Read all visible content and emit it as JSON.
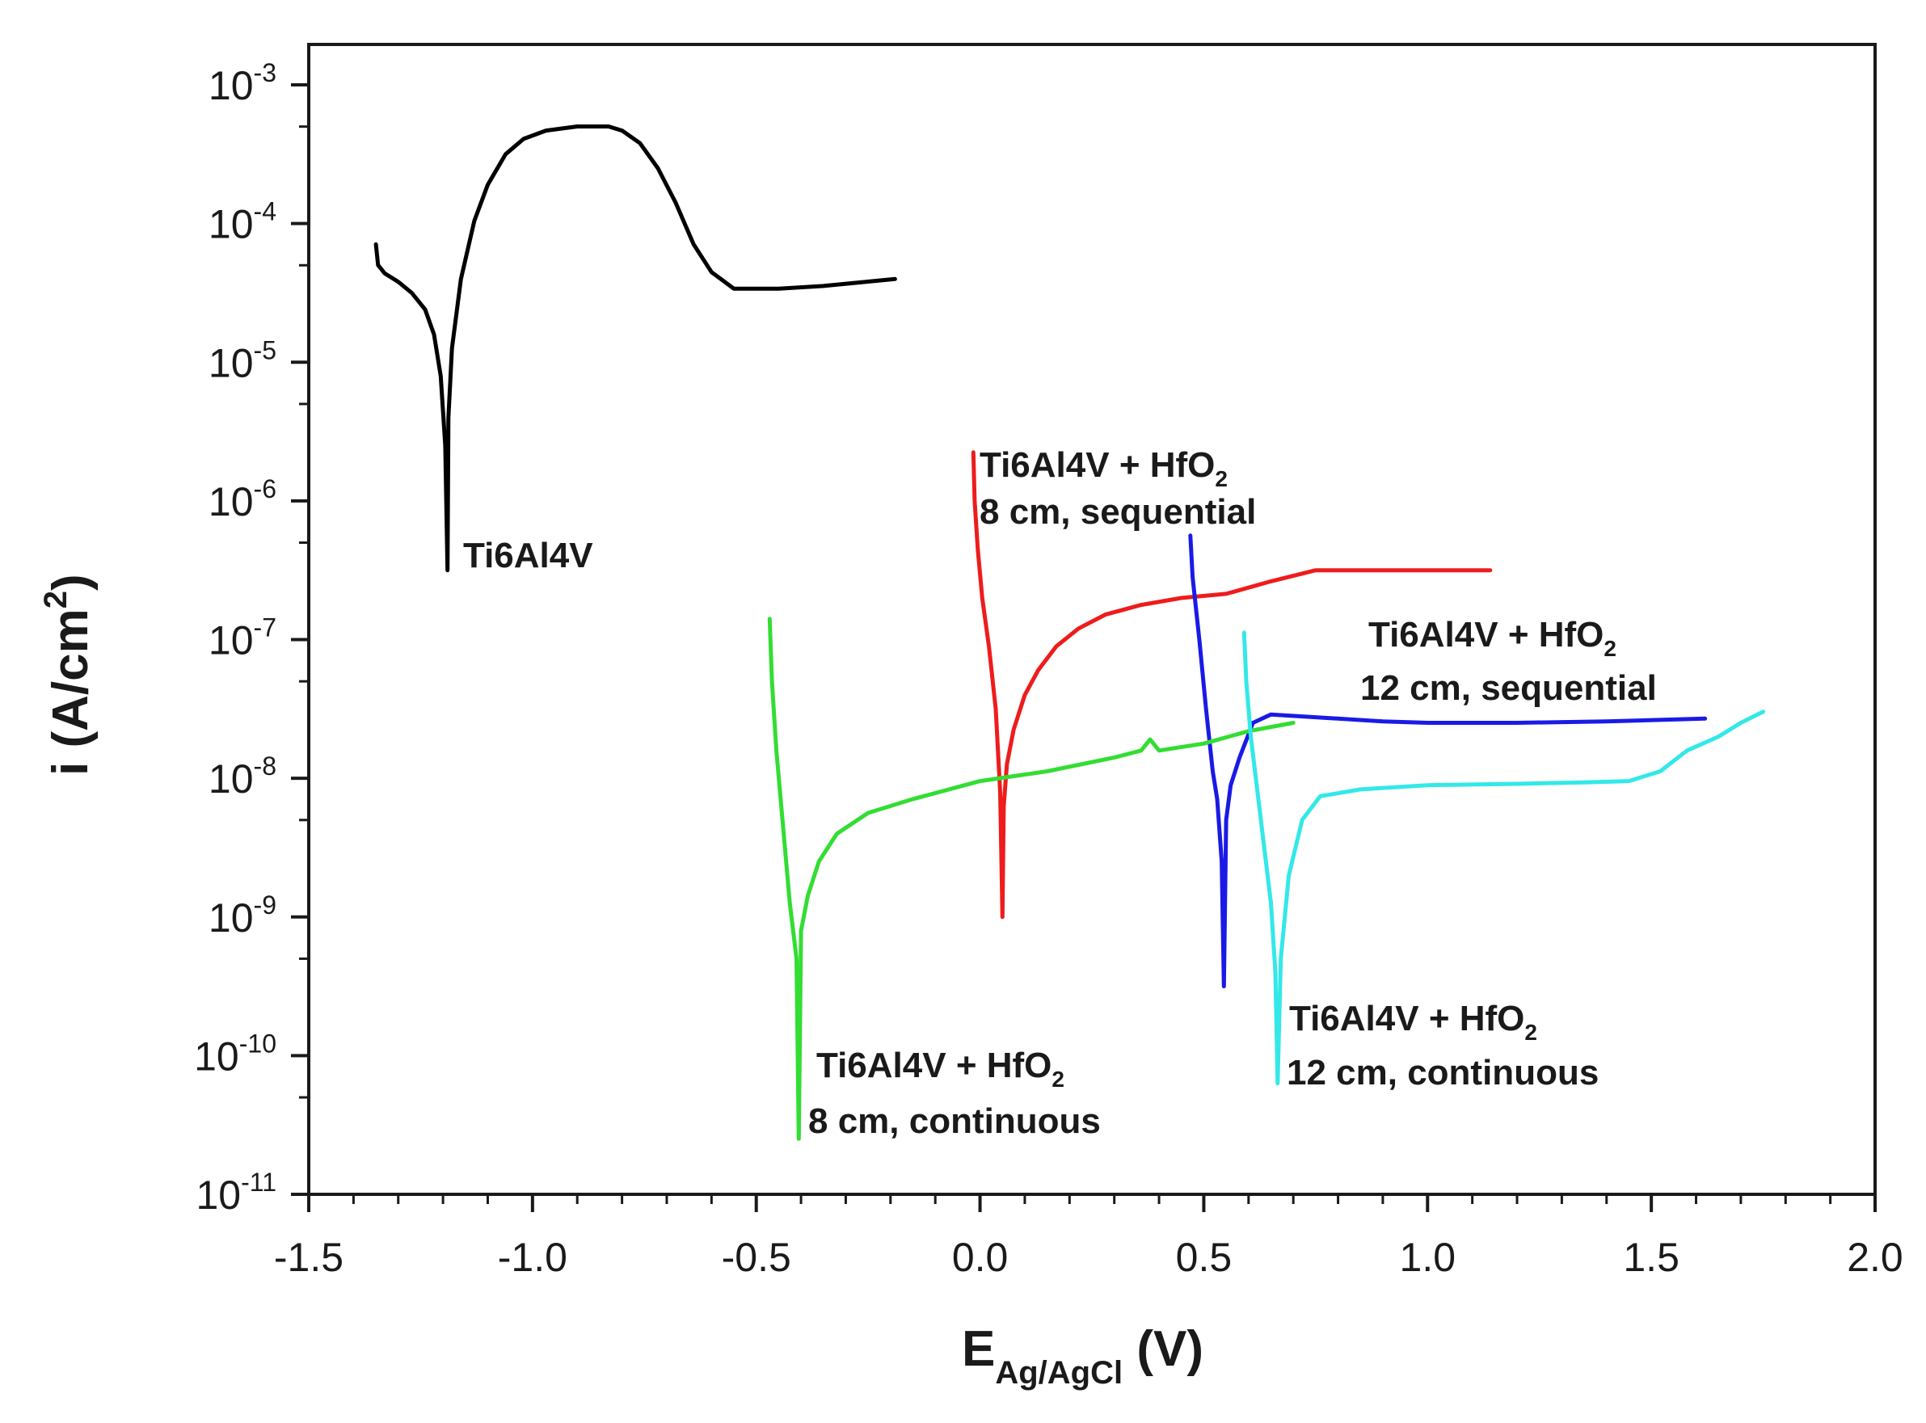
{
  "chart_data": {
    "type": "line",
    "title": "",
    "xlabel": {
      "main": "E",
      "sub": "Ag/AgCl",
      "unit": " (V)"
    },
    "ylabel": {
      "main": "i (A/cm",
      "sup": "2",
      "end": ")"
    },
    "xlim": [
      -1.5,
      2.0
    ],
    "ylim_exponent": [
      -11,
      -3
    ],
    "yscale": "log",
    "x_ticks": [
      "-1.5",
      "-1.0",
      "-0.5",
      "0.0",
      "0.5",
      "1.0",
      "1.5",
      "2.0"
    ],
    "y_ticks": [
      {
        "base": "10",
        "exp": "-3"
      },
      {
        "base": "10",
        "exp": "-4"
      },
      {
        "base": "10",
        "exp": "-5"
      },
      {
        "base": "10",
        "exp": "-6"
      },
      {
        "base": "10",
        "exp": "-7"
      },
      {
        "base": "10",
        "exp": "-8"
      },
      {
        "base": "10",
        "exp": "-9"
      },
      {
        "base": "10",
        "exp": "-10"
      },
      {
        "base": "10",
        "exp": "-11"
      }
    ],
    "grid": false,
    "series": [
      {
        "name": "Ti6Al4V",
        "color": "#000000",
        "points": [
          [
            -1.35,
            -4.15
          ],
          [
            -1.345,
            -4.3
          ],
          [
            -1.33,
            -4.36
          ],
          [
            -1.3,
            -4.42
          ],
          [
            -1.27,
            -4.5
          ],
          [
            -1.24,
            -4.62
          ],
          [
            -1.22,
            -4.8
          ],
          [
            -1.205,
            -5.1
          ],
          [
            -1.195,
            -5.6
          ],
          [
            -1.19,
            -6.5
          ],
          [
            -1.188,
            -5.4
          ],
          [
            -1.18,
            -4.9
          ],
          [
            -1.16,
            -4.4
          ],
          [
            -1.13,
            -3.98
          ],
          [
            -1.1,
            -3.72
          ],
          [
            -1.06,
            -3.5
          ],
          [
            -1.02,
            -3.39
          ],
          [
            -0.97,
            -3.33
          ],
          [
            -0.9,
            -3.3
          ],
          [
            -0.83,
            -3.3
          ],
          [
            -0.8,
            -3.33
          ],
          [
            -0.76,
            -3.42
          ],
          [
            -0.72,
            -3.6
          ],
          [
            -0.68,
            -3.85
          ],
          [
            -0.64,
            -4.15
          ],
          [
            -0.6,
            -4.35
          ],
          [
            -0.55,
            -4.47
          ],
          [
            -0.45,
            -4.47
          ],
          [
            -0.35,
            -4.45
          ],
          [
            -0.19,
            -4.4
          ]
        ]
      },
      {
        "name": "Ti6Al4V + HfO2 8 cm, sequential",
        "color": "#ee1c1c",
        "points": [
          [
            -0.015,
            -5.65
          ],
          [
            -0.012,
            -6.0
          ],
          [
            -0.005,
            -6.35
          ],
          [
            0.005,
            -6.7
          ],
          [
            0.02,
            -7.05
          ],
          [
            0.035,
            -7.5
          ],
          [
            0.045,
            -8.1
          ],
          [
            0.05,
            -9.0
          ],
          [
            0.053,
            -8.2
          ],
          [
            0.06,
            -7.9
          ],
          [
            0.075,
            -7.65
          ],
          [
            0.1,
            -7.4
          ],
          [
            0.13,
            -7.22
          ],
          [
            0.17,
            -7.05
          ],
          [
            0.22,
            -6.92
          ],
          [
            0.28,
            -6.82
          ],
          [
            0.36,
            -6.75
          ],
          [
            0.45,
            -6.7
          ],
          [
            0.55,
            -6.67
          ],
          [
            0.65,
            -6.58
          ],
          [
            0.75,
            -6.5
          ],
          [
            0.85,
            -6.5
          ],
          [
            1.0,
            -6.5
          ],
          [
            1.14,
            -6.5
          ]
        ]
      },
      {
        "name": "Ti6Al4V + HfO2 12 cm, sequential",
        "color": "#1a1ae6",
        "points": [
          [
            0.47,
            -6.25
          ],
          [
            0.475,
            -6.55
          ],
          [
            0.49,
            -7.0
          ],
          [
            0.505,
            -7.5
          ],
          [
            0.52,
            -7.95
          ],
          [
            0.53,
            -8.15
          ],
          [
            0.54,
            -8.6
          ],
          [
            0.545,
            -9.5
          ],
          [
            0.55,
            -8.3
          ],
          [
            0.56,
            -8.05
          ],
          [
            0.58,
            -7.85
          ],
          [
            0.61,
            -7.6
          ],
          [
            0.65,
            -7.54
          ],
          [
            0.75,
            -7.56
          ],
          [
            0.9,
            -7.59
          ],
          [
            1.0,
            -7.6
          ],
          [
            1.2,
            -7.6
          ],
          [
            1.4,
            -7.59
          ],
          [
            1.62,
            -7.57
          ]
        ]
      },
      {
        "name": "Ti6Al4V + HfO2 8 cm, continuous",
        "color": "#33dd33",
        "points": [
          [
            -0.47,
            -6.85
          ],
          [
            -0.465,
            -7.3
          ],
          [
            -0.455,
            -7.8
          ],
          [
            -0.44,
            -8.35
          ],
          [
            -0.425,
            -8.9
          ],
          [
            -0.41,
            -9.3
          ],
          [
            -0.405,
            -10.6
          ],
          [
            -0.4,
            -9.1
          ],
          [
            -0.385,
            -8.85
          ],
          [
            -0.36,
            -8.6
          ],
          [
            -0.32,
            -8.4
          ],
          [
            -0.25,
            -8.25
          ],
          [
            -0.15,
            -8.15
          ],
          [
            0.0,
            -8.02
          ],
          [
            0.15,
            -7.95
          ],
          [
            0.3,
            -7.85
          ],
          [
            0.36,
            -7.8
          ],
          [
            0.38,
            -7.72
          ],
          [
            0.4,
            -7.8
          ],
          [
            0.5,
            -7.75
          ],
          [
            0.6,
            -7.66
          ],
          [
            0.7,
            -7.6
          ]
        ]
      },
      {
        "name": "Ti6Al4V + HfO2 12 cm, continuous",
        "color": "#33e8e8",
        "points": [
          [
            0.59,
            -6.95
          ],
          [
            0.595,
            -7.3
          ],
          [
            0.605,
            -7.7
          ],
          [
            0.62,
            -8.1
          ],
          [
            0.635,
            -8.5
          ],
          [
            0.65,
            -8.9
          ],
          [
            0.66,
            -9.4
          ],
          [
            0.665,
            -10.2
          ],
          [
            0.672,
            -9.3
          ],
          [
            0.69,
            -8.7
          ],
          [
            0.72,
            -8.3
          ],
          [
            0.76,
            -8.13
          ],
          [
            0.85,
            -8.08
          ],
          [
            1.0,
            -8.05
          ],
          [
            1.2,
            -8.04
          ],
          [
            1.35,
            -8.03
          ],
          [
            1.45,
            -8.02
          ],
          [
            1.52,
            -7.95
          ],
          [
            1.58,
            -7.8
          ],
          [
            1.65,
            -7.7
          ],
          [
            1.7,
            -7.6
          ],
          [
            1.75,
            -7.52
          ]
        ]
      }
    ],
    "annotations": [
      {
        "line1": "Ti6Al4V",
        "line2": ""
      },
      {
        "line1": "Ti6Al4V + HfO",
        "sub": "2",
        "line2": "8 cm, sequential"
      },
      {
        "line1": "Ti6Al4V + HfO",
        "sub": "2",
        "line2": "12 cm, sequential"
      },
      {
        "line1": "Ti6Al4V + HfO",
        "sub": "2",
        "line2": "8 cm, continuous"
      },
      {
        "line1": "Ti6Al4V + HfO",
        "sub": "2",
        "line2": "12 cm, continuous"
      }
    ]
  }
}
